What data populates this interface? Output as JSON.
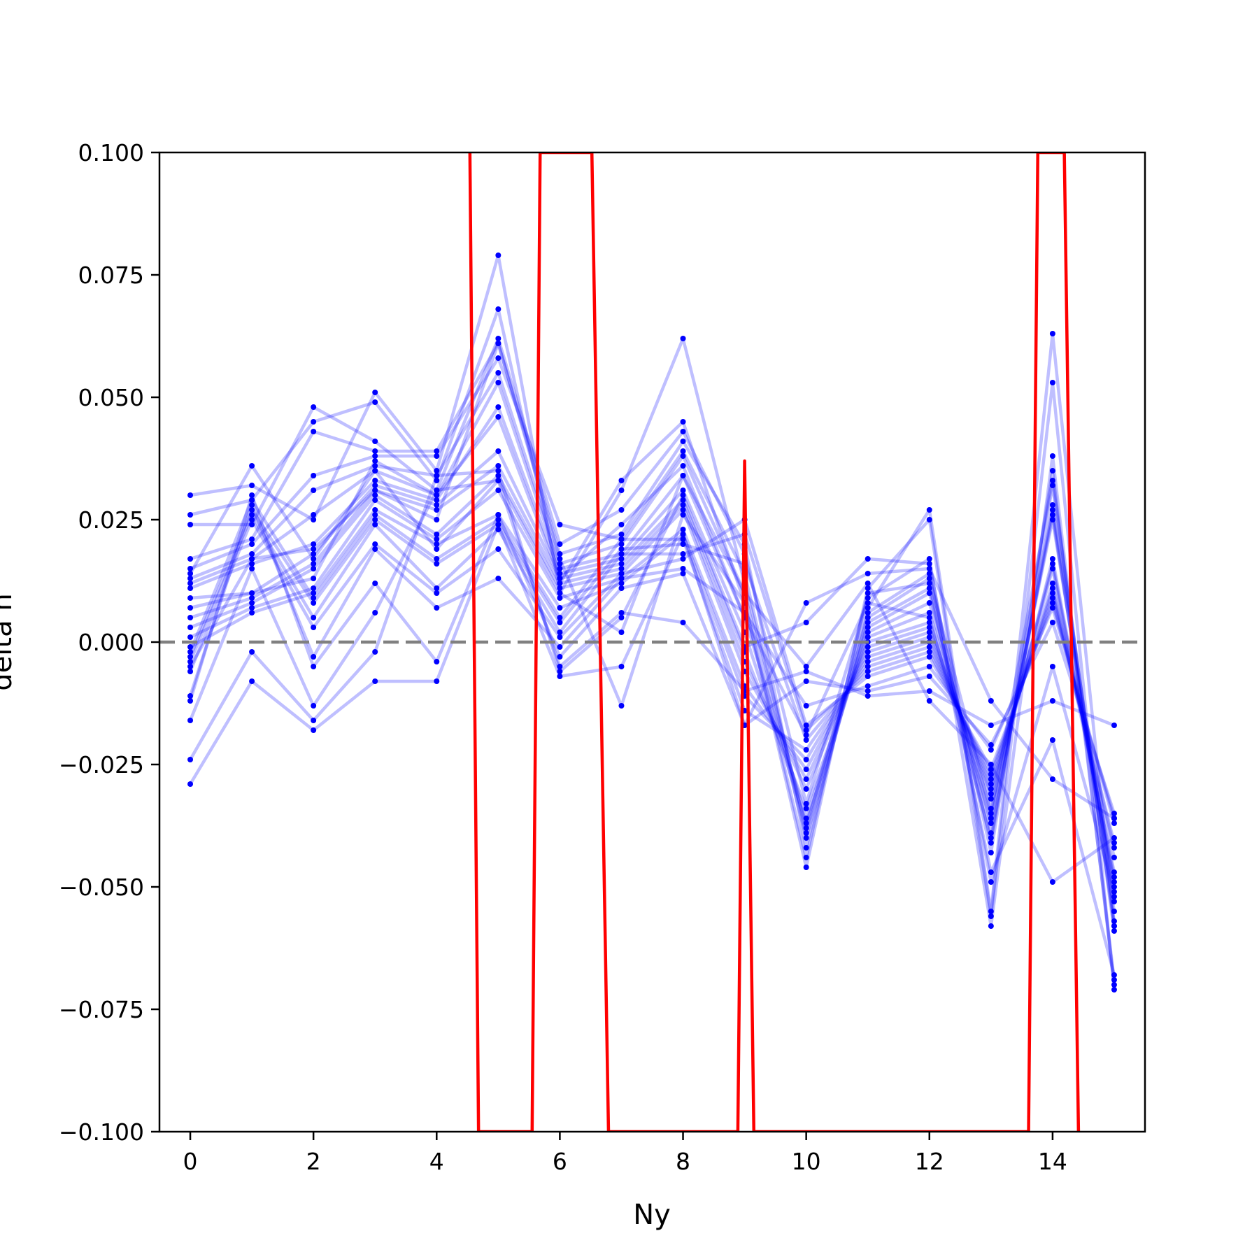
{
  "chart_data": {
    "type": "line",
    "title": "",
    "xlabel": "Ny",
    "ylabel": "delta h",
    "xlim": [
      -0.5,
      15.5
    ],
    "ylim": [
      -0.1,
      0.1
    ],
    "x": [
      0,
      1,
      2,
      3,
      4,
      5,
      6,
      7,
      8,
      9,
      10,
      11,
      12,
      13,
      14,
      15
    ],
    "xticks": [
      0,
      2,
      4,
      6,
      8,
      10,
      12,
      14
    ],
    "xtick_labels": [
      "0",
      "2",
      "4",
      "6",
      "8",
      "10",
      "12",
      "14"
    ],
    "yticks": [
      -0.1,
      -0.075,
      -0.05,
      -0.025,
      0.0,
      0.025,
      0.05,
      0.075,
      0.1
    ],
    "ytick_labels": [
      "−0.100",
      "−0.075",
      "−0.050",
      "−0.025",
      "0.000",
      "0.025",
      "0.050",
      "0.075",
      "0.100"
    ],
    "reference_line": {
      "y": 0.0,
      "style": "dashed",
      "color": "#808080"
    },
    "colors": {
      "samples": "#0000ff",
      "mean": "#ff0000",
      "reference": "#808080"
    },
    "series": [
      {
        "values": [
          0.03,
          0.032,
          0.025,
          0.051,
          0.035,
          0.079,
          0.01,
          0.031,
          0.062,
          0.012,
          -0.038,
          0.007,
          0.027,
          -0.055,
          0.063,
          -0.058
        ]
      },
      {
        "values": [
          0.026,
          0.029,
          0.045,
          0.049,
          0.033,
          0.068,
          0.012,
          0.033,
          0.045,
          0.008,
          -0.046,
          0.011,
          0.025,
          -0.056,
          0.053,
          -0.071
        ]
      },
      {
        "values": [
          0.024,
          0.024,
          0.048,
          0.041,
          0.031,
          0.062,
          0.02,
          0.027,
          0.043,
          0.018,
          -0.033,
          0.009,
          0.017,
          -0.058,
          0.038,
          -0.07
        ]
      },
      {
        "values": [
          0.017,
          0.021,
          0.043,
          0.039,
          0.039,
          0.061,
          0.018,
          0.022,
          0.041,
          0.02,
          -0.042,
          0.006,
          0.014,
          -0.043,
          0.035,
          -0.069
        ]
      },
      {
        "values": [
          0.015,
          0.02,
          0.034,
          0.038,
          0.038,
          0.058,
          0.024,
          0.021,
          0.039,
          0.014,
          -0.039,
          0.005,
          0.013,
          -0.035,
          0.033,
          -0.059
        ]
      },
      {
        "values": [
          0.013,
          0.018,
          0.031,
          0.036,
          0.034,
          0.055,
          0.016,
          0.02,
          0.038,
          0.01,
          -0.04,
          0.004,
          0.011,
          -0.041,
          0.032,
          -0.058
        ]
      },
      {
        "values": [
          0.012,
          0.017,
          0.026,
          0.035,
          0.03,
          0.053,
          0.015,
          0.018,
          0.034,
          0.005,
          -0.036,
          0.003,
          0.01,
          -0.039,
          0.027,
          -0.057
        ]
      },
      {
        "values": [
          0.011,
          0.016,
          0.02,
          0.033,
          0.029,
          0.048,
          0.014,
          0.017,
          0.031,
          0.002,
          -0.037,
          0.002,
          0.008,
          -0.037,
          0.026,
          -0.055
        ]
      },
      {
        "values": [
          0.007,
          0.01,
          0.018,
          0.032,
          0.028,
          0.039,
          0.013,
          0.016,
          0.029,
          -0.002,
          -0.034,
          0.001,
          0.006,
          -0.036,
          0.025,
          -0.052
        ]
      },
      {
        "values": [
          0.005,
          0.009,
          0.016,
          0.031,
          0.027,
          0.036,
          0.012,
          0.015,
          0.028,
          -0.004,
          -0.03,
          0.0,
          0.004,
          -0.034,
          0.017,
          -0.05
        ]
      },
      {
        "values": [
          0.003,
          0.008,
          0.015,
          0.03,
          0.022,
          0.034,
          0.011,
          0.014,
          0.027,
          -0.006,
          -0.028,
          -0.001,
          0.003,
          -0.032,
          0.016,
          -0.049
        ]
      },
      {
        "values": [
          0.001,
          0.007,
          0.011,
          0.029,
          0.021,
          0.031,
          0.009,
          0.013,
          0.023,
          -0.009,
          -0.026,
          -0.002,
          0.002,
          -0.031,
          0.015,
          -0.048
        ]
      },
      {
        "values": [
          -0.001,
          0.006,
          0.01,
          0.027,
          0.02,
          0.026,
          0.007,
          0.012,
          0.022,
          -0.011,
          -0.024,
          -0.003,
          0.001,
          -0.03,
          0.012,
          -0.047
        ]
      },
      {
        "values": [
          -0.002,
          0.029,
          0.009,
          0.026,
          0.017,
          0.025,
          0.005,
          0.021,
          0.021,
          -0.014,
          -0.022,
          -0.004,
          0.0,
          -0.029,
          0.011,
          -0.044
        ]
      },
      {
        "values": [
          -0.003,
          0.027,
          0.008,
          0.025,
          0.016,
          0.024,
          0.004,
          0.019,
          0.02,
          0.016,
          -0.02,
          -0.005,
          -0.001,
          -0.028,
          0.01,
          -0.042
        ]
      },
      {
        "values": [
          -0.004,
          0.026,
          0.005,
          0.024,
          0.011,
          0.023,
          0.002,
          0.018,
          0.018,
          0.022,
          -0.018,
          -0.006,
          -0.002,
          -0.027,
          0.009,
          -0.041
        ]
      },
      {
        "values": [
          -0.006,
          0.025,
          0.003,
          0.02,
          0.01,
          0.019,
          0.001,
          0.014,
          0.017,
          0.025,
          -0.017,
          -0.007,
          -0.003,
          -0.026,
          0.008,
          -0.037
        ]
      },
      {
        "values": [
          -0.011,
          0.028,
          -0.003,
          0.019,
          0.007,
          0.013,
          -0.001,
          0.013,
          0.015,
          0.006,
          -0.013,
          -0.009,
          -0.005,
          -0.022,
          0.007,
          -0.036
        ]
      },
      {
        "values": [
          -0.012,
          0.03,
          -0.005,
          0.012,
          -0.004,
          0.026,
          -0.003,
          0.011,
          0.014,
          -0.017,
          -0.008,
          -0.01,
          -0.007,
          -0.021,
          0.004,
          -0.035
        ]
      },
      {
        "values": [
          -0.016,
          0.015,
          -0.013,
          0.006,
          0.031,
          0.033,
          -0.005,
          0.006,
          0.004,
          -0.01,
          -0.006,
          -0.011,
          -0.01,
          -0.017,
          -0.012,
          -0.017
        ]
      },
      {
        "values": [
          -0.024,
          -0.002,
          -0.016,
          -0.002,
          0.034,
          0.035,
          -0.006,
          0.005,
          0.03,
          -0.001,
          0.004,
          0.017,
          0.016,
          -0.049,
          -0.005,
          -0.051
        ]
      },
      {
        "values": [
          -0.029,
          -0.008,
          -0.018,
          -0.008,
          -0.008,
          0.024,
          -0.007,
          -0.005,
          0.022,
          -0.017,
          0.008,
          0.014,
          0.015,
          -0.012,
          -0.028,
          -0.036
        ]
      },
      {
        "values": [
          0.014,
          0.036,
          0.017,
          0.035,
          0.019,
          0.033,
          0.01,
          0.002,
          0.034,
          0.01,
          -0.005,
          0.012,
          -0.012,
          -0.025,
          -0.049,
          -0.04
        ]
      },
      {
        "values": [
          0.009,
          0.01,
          0.013,
          0.037,
          0.03,
          0.046,
          0.013,
          0.024,
          0.036,
          0.005,
          -0.019,
          0.008,
          0.005,
          -0.04,
          0.028,
          -0.053
        ]
      },
      {
        "values": [
          -0.005,
          0.017,
          0.019,
          0.031,
          0.025,
          0.061,
          0.017,
          -0.013,
          0.026,
          0.008,
          -0.044,
          0.01,
          0.012,
          -0.047,
          -0.02,
          -0.068
        ]
      }
    ],
    "mean_line": {
      "color": "#ff0000",
      "points": [
        [
          4.54,
          0.1
        ],
        [
          4.68,
          -0.1
        ],
        [
          5.55,
          -0.1
        ],
        [
          5.68,
          0.1
        ],
        [
          6.52,
          0.1
        ],
        [
          6.79,
          -0.1
        ],
        [
          8.89,
          -0.1
        ],
        [
          9.0,
          0.037
        ],
        [
          9.15,
          -0.1
        ],
        [
          13.61,
          -0.1
        ],
        [
          13.76,
          0.1
        ],
        [
          14.19,
          0.1
        ],
        [
          14.42,
          -0.1
        ]
      ]
    }
  }
}
